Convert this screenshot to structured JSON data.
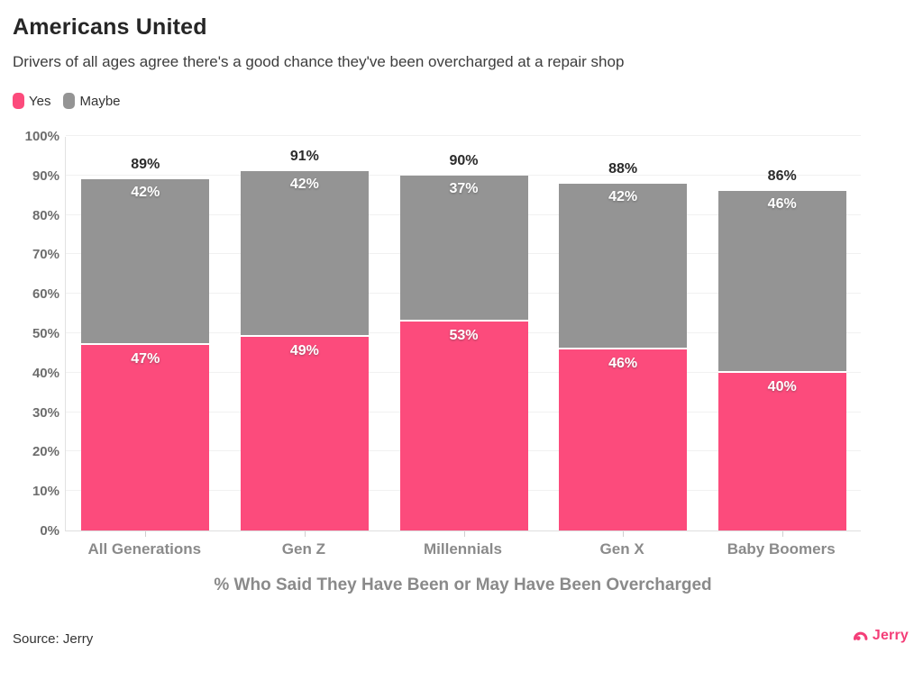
{
  "header": {
    "title": "Americans United",
    "subtitle": "Drivers of all ages agree there's a good chance they've been overcharged at a repair shop"
  },
  "legend": [
    {
      "label": "Yes",
      "color": "#fc4b7c"
    },
    {
      "label": "Maybe",
      "color": "#949494"
    }
  ],
  "chart_data": {
    "type": "bar",
    "stacked": true,
    "categories": [
      "All Generations",
      "Gen Z",
      "Millennials",
      "Gen X",
      "Baby Boomers"
    ],
    "series": [
      {
        "name": "Yes",
        "color": "#fc4b7c",
        "values": [
          47,
          49,
          53,
          46,
          40
        ]
      },
      {
        "name": "Maybe",
        "color": "#949494",
        "values": [
          42,
          42,
          37,
          42,
          46
        ]
      }
    ],
    "totals": [
      "89%",
      "91%",
      "90%",
      "88%",
      "86%"
    ],
    "segment_labels": {
      "Yes": [
        "47%",
        "49%",
        "53%",
        "46%",
        "40%"
      ],
      "Maybe": [
        "42%",
        "42%",
        "37%",
        "42%",
        "46%"
      ]
    },
    "xlabel": "% Who Said They Have Been or May Have Been Overcharged",
    "ylabel": "",
    "ylim": [
      0,
      100
    ],
    "ytick_labels": [
      "0%",
      "10%",
      "20%",
      "30%",
      "40%",
      "50%",
      "60%",
      "70%",
      "80%",
      "90%",
      "100%"
    ],
    "grid": true,
    "legend_position": "top-left"
  },
  "footer": {
    "source": "Source: Jerry",
    "brand": "Jerry"
  },
  "colors": {
    "yes": "#fc4b7c",
    "maybe": "#949494",
    "brand_pink": "#f43e78",
    "grid": "#f1f1f1"
  }
}
